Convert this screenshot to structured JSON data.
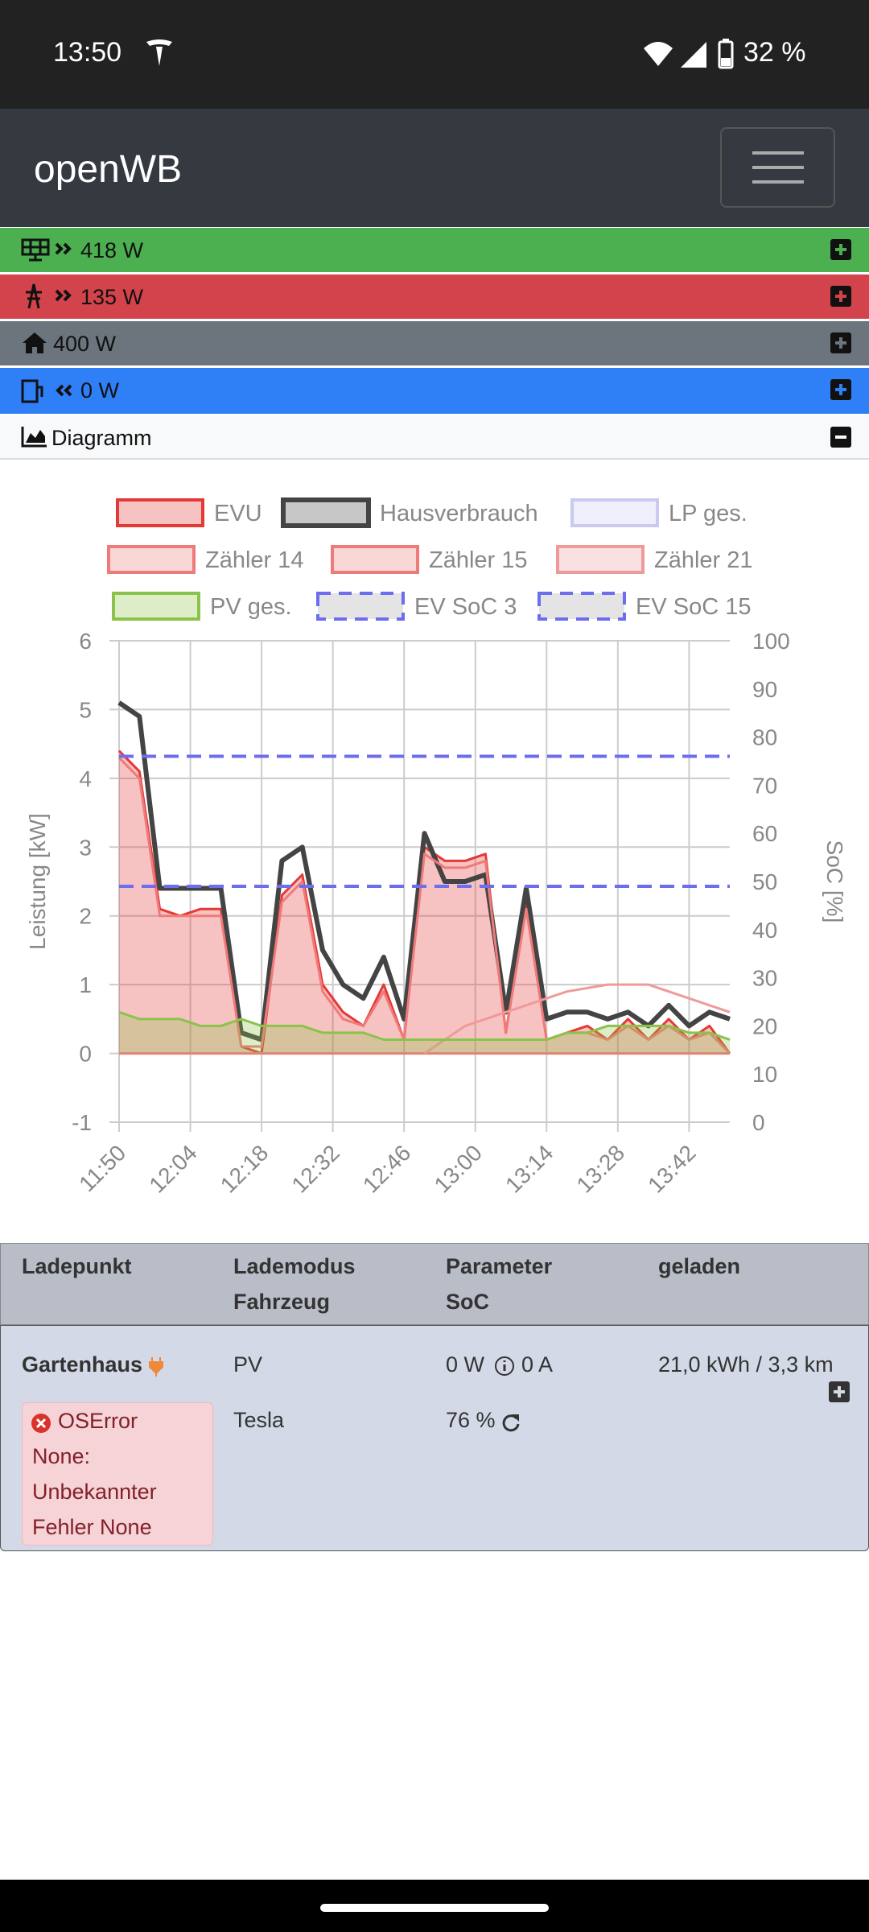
{
  "status_bar": {
    "time": "13:50",
    "battery": "32 %"
  },
  "navbar": {
    "title": "openWB"
  },
  "power_rows": [
    {
      "value": "418 W"
    },
    {
      "value": "135 W"
    },
    {
      "value": "400 W"
    },
    {
      "value": "0 W"
    }
  ],
  "diagram_header": {
    "title": "Diagramm"
  },
  "chart_data": {
    "type": "line",
    "x": [
      710,
      714,
      718,
      722,
      726,
      730,
      734,
      738,
      742,
      746,
      750,
      754,
      758,
      762,
      766,
      770,
      774,
      778,
      782,
      786,
      790,
      794,
      798,
      802,
      806,
      810,
      814,
      818,
      822,
      826,
      830
    ],
    "xlim": [
      710,
      830
    ],
    "xticks": [
      {
        "value": 710,
        "label": "11:50"
      },
      {
        "value": 724,
        "label": "12:04"
      },
      {
        "value": 738,
        "label": "12:18"
      },
      {
        "value": 752,
        "label": "12:32"
      },
      {
        "value": 766,
        "label": "12:46"
      },
      {
        "value": 780,
        "label": "13:00"
      },
      {
        "value": 794,
        "label": "13:14"
      },
      {
        "value": 808,
        "label": "13:28"
      },
      {
        "value": 822,
        "label": "13:42"
      }
    ],
    "ylim": [
      -1,
      6
    ],
    "yticks": [
      -1,
      0,
      1,
      2,
      3,
      4,
      5,
      6
    ],
    "y2lim": [
      0,
      100
    ],
    "y2ticks": [
      0,
      10,
      20,
      30,
      40,
      50,
      60,
      70,
      80,
      90,
      100
    ],
    "ylabel": "Leistung [kW]",
    "y2label": "SoC [%]",
    "grid": true,
    "series": [
      {
        "name": "EVU",
        "color": "#e53935",
        "fill": true,
        "values": [
          4.4,
          4.1,
          2.1,
          2.0,
          2.1,
          2.1,
          0.1,
          0.0,
          2.3,
          2.6,
          1.0,
          0.6,
          0.4,
          1.0,
          0.2,
          3.0,
          2.8,
          2.8,
          2.9,
          0.3,
          2.2,
          0.2,
          0.3,
          0.4,
          0.2,
          0.5,
          0.2,
          0.5,
          0.2,
          0.4,
          0.0
        ]
      },
      {
        "name": "Hausverbrauch",
        "color": "#444444",
        "values": [
          5.1,
          4.9,
          2.4,
          2.4,
          2.4,
          2.4,
          0.3,
          0.2,
          2.8,
          3.0,
          1.5,
          1.0,
          0.8,
          1.4,
          0.5,
          3.2,
          2.5,
          2.5,
          2.6,
          0.6,
          2.4,
          0.5,
          0.6,
          0.6,
          0.5,
          0.6,
          0.4,
          0.7,
          0.4,
          0.6,
          0.5
        ]
      },
      {
        "name": "LP ges.",
        "color": "#c9c9f2",
        "values": [
          0,
          0,
          0,
          0,
          0,
          0,
          0,
          0,
          0,
          0,
          0,
          0,
          0,
          0,
          0,
          0,
          0,
          0,
          0,
          0,
          0,
          0,
          0,
          0,
          0,
          0,
          0,
          0,
          0,
          0,
          0
        ]
      },
      {
        "name": "Zähler 14",
        "color": "#ef7a7a",
        "values": [
          4.3,
          4.0,
          2.0,
          2.0,
          2.0,
          2.0,
          0.1,
          0.1,
          2.2,
          2.5,
          0.9,
          0.5,
          0.4,
          0.9,
          0.2,
          2.9,
          2.7,
          2.7,
          2.8,
          0.3,
          2.1,
          0.2,
          0.3,
          0.3,
          0.2,
          0.4,
          0.2,
          0.4,
          0.2,
          0.3,
          0.0
        ]
      },
      {
        "name": "Zähler 15",
        "color": "#ef7a7a",
        "values": [
          0,
          0,
          0,
          0,
          0,
          0,
          0,
          0,
          0,
          0,
          0,
          0,
          0,
          0,
          0,
          0,
          0,
          0,
          0,
          0,
          0,
          0,
          0,
          0,
          0,
          0,
          0,
          0,
          0,
          0,
          0
        ]
      },
      {
        "name": "Zähler 21",
        "color": "#ef9a9a",
        "values": [
          null,
          null,
          null,
          null,
          null,
          null,
          null,
          null,
          null,
          null,
          null,
          null,
          null,
          null,
          null,
          0.0,
          0.2,
          0.4,
          0.5,
          0.6,
          0.7,
          0.8,
          0.9,
          0.95,
          1.0,
          1.0,
          1.0,
          0.9,
          0.8,
          0.7,
          0.6
        ]
      },
      {
        "name": "PV ges.",
        "color": "#8bc34a",
        "fill": true,
        "values": [
          0.6,
          0.5,
          0.5,
          0.5,
          0.4,
          0.4,
          0.5,
          0.4,
          0.4,
          0.4,
          0.3,
          0.3,
          0.3,
          0.2,
          0.2,
          0.2,
          0.2,
          0.2,
          0.2,
          0.2,
          0.2,
          0.2,
          0.3,
          0.3,
          0.4,
          0.4,
          0.4,
          0.4,
          0.3,
          0.3,
          0.2
        ]
      },
      {
        "name": "EV SoC 3",
        "color": "#6d6df0",
        "dashed": true,
        "axis": "y2",
        "values": [
          76,
          76,
          76,
          76,
          76,
          76,
          76,
          76,
          76,
          76,
          76,
          76,
          76,
          76,
          76,
          76,
          76,
          76,
          76,
          76,
          76,
          76,
          76,
          76,
          76,
          76,
          76,
          76,
          76,
          76,
          76
        ]
      },
      {
        "name": "EV SoC 15",
        "color": "#6d6df0",
        "dashed": true,
        "axis": "y2",
        "values": [
          49,
          49,
          49,
          49,
          49,
          49,
          49,
          49,
          49,
          49,
          49,
          49,
          49,
          49,
          49,
          49,
          49,
          49,
          49,
          49,
          49,
          49,
          49,
          49,
          49,
          49,
          49,
          49,
          49,
          49,
          49
        ]
      }
    ]
  },
  "table": {
    "headers": [
      [
        "Ladepunkt"
      ],
      [
        "Lademodus",
        "Fahrzeug"
      ],
      [
        "Parameter",
        "SoC"
      ],
      [
        "geladen"
      ]
    ],
    "rows": [
      {
        "name": "Gartenhaus",
        "mode": "PV",
        "power": "0 W",
        "current": "0 A",
        "charged": "21,0 kWh / 3,3 km",
        "error": [
          "OSError",
          "None:",
          "Unbekannter",
          "Fehler None"
        ],
        "vehicle": "Tesla",
        "soc": "76 %"
      }
    ]
  }
}
